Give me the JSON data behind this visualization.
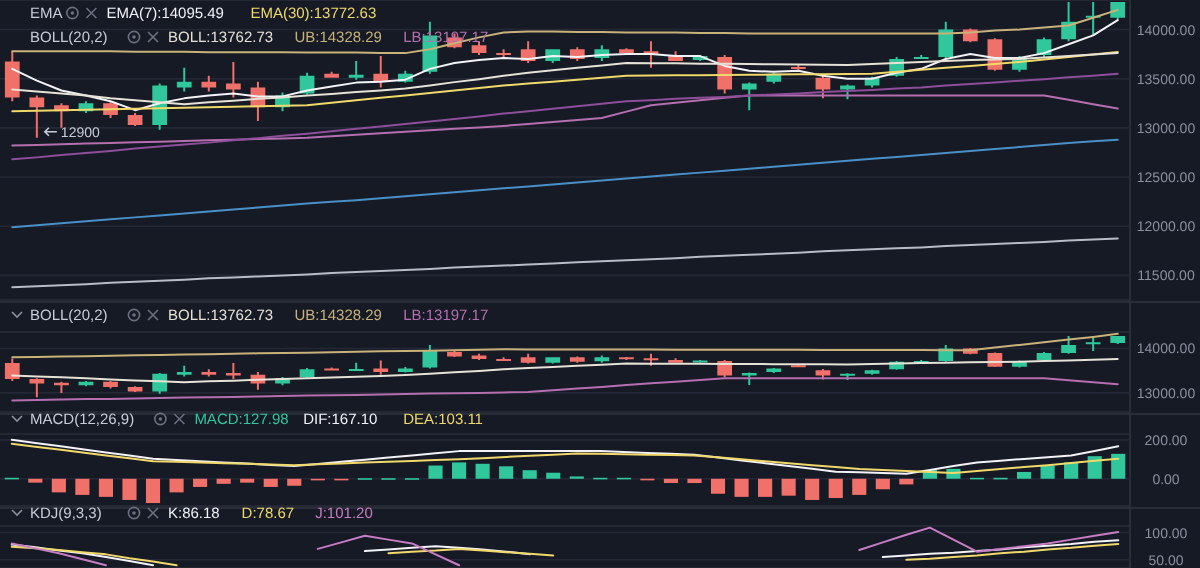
{
  "chart_data": [
    {
      "type": "candlestick",
      "categories": [
        null,
        null,
        null,
        null,
        null,
        null,
        null,
        null,
        null,
        null,
        null,
        null,
        null,
        null,
        null,
        null,
        null,
        null,
        null,
        null,
        null,
        null,
        null,
        null,
        null,
        null,
        null,
        null,
        null,
        null,
        null,
        null,
        null,
        null,
        null,
        null,
        null,
        null,
        null,
        null,
        null,
        null,
        null,
        null,
        null,
        null
      ],
      "ylim": [
        11250,
        14300
      ],
      "yticks": [
        {
          "value": 11500,
          "label": "11500.00"
        },
        {
          "value": 12000,
          "label": "12000.00"
        },
        {
          "value": 12500,
          "label": "12500.00"
        },
        {
          "value": 13000,
          "label": "13000.00"
        },
        {
          "value": 13500,
          "label": "13500.00"
        },
        {
          "value": 14000,
          "label": "14000.00"
        }
      ],
      "tick_labels": "y",
      "grid": "y",
      "ohlc": [
        [
          13675,
          13776,
          13270,
          13310
        ],
        [
          13310,
          13330,
          12900,
          13210
        ],
        [
          13230,
          13250,
          13000,
          13170
        ],
        [
          13170,
          13270,
          13150,
          13250
        ],
        [
          13250,
          13270,
          13100,
          13130
        ],
        [
          13130,
          13150,
          13020,
          13030
        ],
        [
          13030,
          13450,
          12980,
          13430
        ],
        [
          13410,
          13610,
          13370,
          13470
        ],
        [
          13470,
          13530,
          13370,
          13410
        ],
        [
          13450,
          13670,
          13310,
          13390
        ],
        [
          13410,
          13470,
          13070,
          13210
        ],
        [
          13210,
          13360,
          13170,
          13330
        ],
        [
          13350,
          13560,
          13340,
          13530
        ],
        [
          13550,
          13570,
          13510,
          13510
        ],
        [
          13510,
          13680,
          13490,
          13540
        ],
        [
          13550,
          13730,
          13410,
          13470
        ],
        [
          13470,
          13580,
          13460,
          13550
        ],
        [
          13570,
          14080,
          13550,
          13940
        ],
        [
          13920,
          13960,
          13810,
          13820
        ],
        [
          13840,
          13880,
          13740,
          13760
        ],
        [
          13760,
          13800,
          13720,
          13740
        ],
        [
          13800,
          13880,
          13660,
          13680
        ],
        [
          13680,
          13800,
          13660,
          13800
        ],
        [
          13800,
          13820,
          13680,
          13700
        ],
        [
          13710,
          13840,
          13680,
          13800
        ],
        [
          13800,
          13810,
          13740,
          13760
        ],
        [
          13780,
          13880,
          13610,
          13750
        ],
        [
          13740,
          13780,
          13680,
          13680
        ],
        [
          13690,
          13740,
          13680,
          13730
        ],
        [
          13720,
          13740,
          13350,
          13390
        ],
        [
          13390,
          13460,
          13180,
          13450
        ],
        [
          13470,
          13560,
          13450,
          13550
        ],
        [
          13620,
          13640,
          13590,
          13600
        ],
        [
          13510,
          13540,
          13300,
          13390
        ],
        [
          13390,
          13440,
          13290,
          13430
        ],
        [
          13430,
          13520,
          13410,
          13510
        ],
        [
          13530,
          13720,
          13520,
          13700
        ],
        [
          13710,
          13740,
          13700,
          13720
        ],
        [
          13720,
          14080,
          13700,
          14000
        ],
        [
          14000,
          14010,
          13870,
          13880
        ],
        [
          13900,
          13910,
          13580,
          13590
        ],
        [
          13590,
          13730,
          13570,
          13720
        ],
        [
          13740,
          13920,
          13720,
          13900
        ],
        [
          13900,
          14280,
          13880,
          14080
        ],
        [
          14120,
          14280,
          13940,
          14140
        ],
        [
          14120,
          14280,
          14100,
          14280
        ]
      ],
      "series": [
        {
          "type": "line",
          "name": "EMA(7):14095.49",
          "color": "#f2f2f7",
          "values": [
            13600,
            13480,
            13380,
            13330,
            13270,
            13180,
            13250,
            13300,
            13330,
            13350,
            13320,
            13320,
            13380,
            13420,
            13460,
            13470,
            13490,
            13600,
            13660,
            13690,
            13710,
            13700,
            13730,
            13720,
            13740,
            13750,
            13750,
            13730,
            13730,
            13630,
            13580,
            13570,
            13580,
            13530,
            13500,
            13500,
            13560,
            13600,
            13700,
            13750,
            13710,
            13710,
            13760,
            13850,
            13940,
            14095
          ]
        },
        {
          "type": "line",
          "name": "EMA(30):13772.63",
          "color": "#f0d96a",
          "values": [
            13170,
            13175,
            13180,
            13185,
            13190,
            13195,
            13200,
            13205,
            13210,
            13215,
            13220,
            13225,
            13230,
            13255,
            13280,
            13305,
            13330,
            13355,
            13380,
            13405,
            13430,
            13450,
            13470,
            13490,
            13510,
            13530,
            13532,
            13534,
            13536,
            13538,
            13540,
            13542,
            13544,
            13546,
            13548,
            13550,
            13570,
            13590,
            13610,
            13630,
            13650,
            13670,
            13695,
            13720,
            13745,
            13772
          ]
        },
        {
          "type": "line",
          "name": "BOLL:13762.73",
          "color": "#e6e2d6",
          "values": [
            13390,
            13370,
            13350,
            13330,
            13300,
            13280,
            13260,
            13240,
            13260,
            13275,
            13295,
            13310,
            13330,
            13345,
            13365,
            13380,
            13400,
            13430,
            13465,
            13495,
            13530,
            13560,
            13585,
            13610,
            13635,
            13660,
            13658,
            13656,
            13653,
            13651,
            13649,
            13647,
            13645,
            13642,
            13640,
            13650,
            13660,
            13670,
            13680,
            13690,
            13695,
            13700,
            13715,
            13730,
            13745,
            13762
          ]
        },
        {
          "type": "line",
          "name": "UB:14328.29",
          "color": "#c9b27a",
          "values": [
            13780,
            13780,
            13780,
            13780,
            13780,
            13775,
            13775,
            13775,
            13770,
            13770,
            13770,
            13770,
            13765,
            13765,
            13765,
            13760,
            13760,
            13800,
            13860,
            13920,
            13970,
            13980,
            13980,
            13975,
            13975,
            13970,
            13970,
            13970,
            13965,
            13965,
            13960,
            13960,
            13960,
            13960,
            13960,
            13960,
            13960,
            13960,
            13960,
            13970,
            13990,
            14000,
            14020,
            14040,
            14120,
            14200
          ]
        },
        {
          "type": "line",
          "name": "LB:13197.17",
          "color": "#b56fb0",
          "values": [
            12820,
            12827,
            12833,
            12840,
            12847,
            12853,
            12860,
            12867,
            12873,
            12880,
            12887,
            12893,
            12900,
            12915,
            12930,
            12945,
            12960,
            12975,
            12990,
            13005,
            13020,
            13040,
            13060,
            13080,
            13100,
            13165,
            13230,
            13255,
            13280,
            13305,
            13330,
            13330,
            13330,
            13330,
            13330,
            13330,
            13330,
            13330,
            13330,
            13330,
            13330,
            13330,
            13330,
            13285,
            13240,
            13197
          ]
        },
        {
          "type": "line",
          "color": "#8e4f9a",
          "values": [
            12680,
            12700,
            12725,
            12745,
            12765,
            12790,
            12810,
            12830,
            12850,
            12875,
            12895,
            12920,
            12940,
            12965,
            12990,
            13015,
            13040,
            13065,
            13090,
            13115,
            13145,
            13170,
            13195,
            13220,
            13245,
            13270,
            13280,
            13295,
            13305,
            13315,
            13330,
            13340,
            13350,
            13365,
            13375,
            13385,
            13400,
            13410,
            13430,
            13445,
            13460,
            13480,
            13495,
            13515,
            13530,
            13550
          ]
        },
        {
          "type": "line",
          "color": "#4a90c8",
          "values": [
            11990,
            12010,
            12030,
            12050,
            12070,
            12090,
            12110,
            12130,
            12150,
            12170,
            12190,
            12210,
            12230,
            12250,
            12265,
            12285,
            12305,
            12325,
            12345,
            12365,
            12385,
            12405,
            12425,
            12445,
            12465,
            12485,
            12505,
            12525,
            12545,
            12565,
            12585,
            12605,
            12625,
            12645,
            12665,
            12685,
            12705,
            12725,
            12745,
            12765,
            12785,
            12805,
            12825,
            12845,
            12865,
            12880
          ]
        },
        {
          "type": "line",
          "color": "#b8bcc8",
          "values": [
            11380,
            11390,
            11400,
            11410,
            11425,
            11435,
            11445,
            11455,
            11470,
            11480,
            11490,
            11500,
            11510,
            11525,
            11535,
            11545,
            11555,
            11565,
            11580,
            11590,
            11600,
            11610,
            11620,
            11635,
            11645,
            11655,
            11665,
            11675,
            11690,
            11700,
            11710,
            11720,
            11730,
            11745,
            11755,
            11765,
            11775,
            11785,
            11800,
            11810,
            11820,
            11830,
            11840,
            11855,
            11865,
            11875
          ]
        }
      ],
      "annotations": [
        "EMA",
        "BOLL(20,2)",
        {
          "text": "12900",
          "y": 12900
        }
      ]
    },
    {
      "type": "candlestick",
      "categories": [
        null,
        null,
        null,
        null,
        null,
        null,
        null,
        null,
        null,
        null,
        null,
        null,
        null,
        null,
        null,
        null,
        null,
        null,
        null,
        null,
        null,
        null,
        null,
        null,
        null,
        null,
        null,
        null,
        null,
        null,
        null,
        null,
        null,
        null,
        null,
        null,
        null,
        null,
        null,
        null,
        null,
        null,
        null,
        null,
        null,
        null
      ],
      "ylim": [
        12570,
        14370
      ],
      "yticks": [
        {
          "value": 13000,
          "label": "13000.00"
        },
        {
          "value": 14000,
          "label": "14000.00"
        }
      ],
      "tick_labels": "y",
      "grid": "y",
      "ohlc": [
        [
          13675,
          13776,
          13270,
          13310
        ],
        [
          13310,
          13330,
          12900,
          13210
        ],
        [
          13230,
          13250,
          13000,
          13170
        ],
        [
          13170,
          13270,
          13150,
          13250
        ],
        [
          13250,
          13270,
          13100,
          13130
        ],
        [
          13130,
          13150,
          13020,
          13030
        ],
        [
          13030,
          13450,
          12980,
          13430
        ],
        [
          13410,
          13610,
          13370,
          13470
        ],
        [
          13470,
          13530,
          13370,
          13410
        ],
        [
          13450,
          13670,
          13310,
          13390
        ],
        [
          13410,
          13470,
          13070,
          13210
        ],
        [
          13210,
          13360,
          13170,
          13330
        ],
        [
          13350,
          13560,
          13340,
          13530
        ],
        [
          13550,
          13570,
          13510,
          13510
        ],
        [
          13510,
          13680,
          13490,
          13540
        ],
        [
          13550,
          13730,
          13410,
          13470
        ],
        [
          13470,
          13580,
          13460,
          13550
        ],
        [
          13570,
          14080,
          13550,
          13940
        ],
        [
          13920,
          13960,
          13810,
          13820
        ],
        [
          13840,
          13880,
          13740,
          13760
        ],
        [
          13760,
          13800,
          13720,
          13740
        ],
        [
          13800,
          13880,
          13660,
          13680
        ],
        [
          13680,
          13800,
          13660,
          13800
        ],
        [
          13800,
          13820,
          13680,
          13700
        ],
        [
          13710,
          13840,
          13680,
          13800
        ],
        [
          13800,
          13810,
          13740,
          13760
        ],
        [
          13780,
          13880,
          13610,
          13750
        ],
        [
          13740,
          13780,
          13680,
          13680
        ],
        [
          13690,
          13740,
          13680,
          13730
        ],
        [
          13720,
          13740,
          13350,
          13390
        ],
        [
          13390,
          13460,
          13180,
          13450
        ],
        [
          13470,
          13560,
          13450,
          13550
        ],
        [
          13620,
          13640,
          13590,
          13600
        ],
        [
          13510,
          13540,
          13300,
          13390
        ],
        [
          13390,
          13440,
          13290,
          13430
        ],
        [
          13430,
          13520,
          13410,
          13510
        ],
        [
          13530,
          13720,
          13520,
          13700
        ],
        [
          13710,
          13740,
          13700,
          13720
        ],
        [
          13720,
          14080,
          13700,
          14000
        ],
        [
          14000,
          14010,
          13870,
          13880
        ],
        [
          13900,
          13910,
          13580,
          13590
        ],
        [
          13590,
          13730,
          13570,
          13720
        ],
        [
          13740,
          13920,
          13720,
          13900
        ],
        [
          13900,
          14280,
          13880,
          14080
        ],
        [
          14120,
          14280,
          13940,
          14140
        ],
        [
          14120,
          14280,
          14100,
          14280
        ]
      ],
      "series": [
        {
          "type": "line",
          "name": "BOLL:13762.73",
          "color": "#e6e2d6",
          "values": [
            13390,
            13370,
            13350,
            13330,
            13300,
            13280,
            13260,
            13240,
            13260,
            13275,
            13295,
            13310,
            13330,
            13345,
            13365,
            13380,
            13400,
            13430,
            13465,
            13495,
            13530,
            13560,
            13585,
            13610,
            13635,
            13660,
            13658,
            13656,
            13653,
            13651,
            13649,
            13647,
            13645,
            13642,
            13640,
            13650,
            13660,
            13670,
            13680,
            13690,
            13695,
            13700,
            13715,
            13730,
            13745,
            13762
          ]
        },
        {
          "type": "line",
          "name": "UB:14328.29",
          "color": "#c9b27a",
          "values": [
            13800,
            13810,
            13820,
            13825,
            13835,
            13845,
            13855,
            13865,
            13870,
            13880,
            13890,
            13900,
            13905,
            13915,
            13925,
            13935,
            13945,
            13950,
            13960,
            13970,
            13980,
            13979,
            13978,
            13977,
            13976,
            13975,
            13974,
            13973,
            13972,
            13971,
            13970,
            13969,
            13968,
            13967,
            13966,
            13965,
            13964,
            13963,
            13962,
            13960,
            14020,
            14080,
            14140,
            14200,
            14260,
            14328
          ]
        },
        {
          "type": "line",
          "name": "LB:13197.17",
          "color": "#b56fb0",
          "values": [
            12830,
            12840,
            12850,
            12860,
            12865,
            12875,
            12885,
            12895,
            12900,
            12910,
            12920,
            12930,
            12940,
            12945,
            12955,
            12965,
            12975,
            12985,
            12990,
            13000,
            13010,
            13020,
            13060,
            13100,
            13135,
            13175,
            13215,
            13250,
            13290,
            13330,
            13330,
            13330,
            13330,
            13330,
            13330,
            13330,
            13330,
            13330,
            13330,
            13330,
            13330,
            13330,
            13330,
            13285,
            13240,
            13197
          ]
        }
      ],
      "annotations": [
        "BOLL(20,2)"
      ]
    },
    {
      "type": "bar",
      "categories": [
        null,
        null,
        null,
        null,
        null,
        null,
        null,
        null,
        null,
        null,
        null,
        null,
        null,
        null,
        null,
        null,
        null,
        null,
        null,
        null,
        null,
        null,
        null,
        null,
        null,
        null,
        null,
        null,
        null,
        null,
        null,
        null,
        null,
        null,
        null,
        null,
        null,
        null,
        null,
        null,
        null,
        null,
        null,
        null,
        null,
        null,
        null,
        null
      ],
      "ylim": [
        -140,
        230
      ],
      "yticks": [
        {
          "value": 0,
          "label": "0.00"
        },
        {
          "value": 200,
          "label": "200.00"
        }
      ],
      "tick_labels": "y",
      "grid": "y",
      "series": [
        {
          "type": "bar",
          "name": "MACD:127.98",
          "color": "#2fc79b",
          "values": [
            5,
            -20,
            -70,
            -83,
            -93,
            -109,
            -125,
            -70,
            -42,
            -26,
            -20,
            -42,
            -36,
            -7,
            -3,
            3,
            3,
            3,
            68,
            84,
            77,
            64,
            44,
            31,
            12,
            5,
            5,
            -5,
            -22,
            -22,
            -77,
            -93,
            -93,
            -87,
            -109,
            -99,
            -83,
            -54,
            -29,
            45,
            51,
            5,
            5,
            35,
            68,
            84,
            116,
            128
          ],
          "colors": [
            "#2fc79b",
            "#f0706a",
            "#f0706a",
            "#f0706a",
            "#f0706a",
            "#f0706a",
            "#f0706a",
            "#f0706a",
            "#f0706a",
            "#f0706a",
            "#f0706a",
            "#f0706a",
            "#f0706a",
            "#f0706a",
            "#f0706a",
            "#2fc79b",
            "#2fc79b",
            "#2fc79b",
            "#2fc79b",
            "#2fc79b",
            "#2fc79b",
            "#2fc79b",
            "#2fc79b",
            "#2fc79b",
            "#2fc79b",
            "#2fc79b",
            "#2fc79b",
            "#f0706a",
            "#f0706a",
            "#f0706a",
            "#f0706a",
            "#f0706a",
            "#f0706a",
            "#f0706a",
            "#f0706a",
            "#f0706a",
            "#f0706a",
            "#f0706a",
            "#f0706a",
            "#2fc79b",
            "#2fc79b",
            "#2fc79b",
            "#2fc79b",
            "#2fc79b",
            "#2fc79b",
            "#2fc79b",
            "#2fc79b",
            "#2fc79b"
          ]
        },
        {
          "type": "line",
          "name": "DIF:167.10",
          "color": "#f2f2f7",
          "values": [
            200,
            184,
            168,
            152,
            135,
            119,
            103,
            97,
            90,
            84,
            78,
            71,
            65,
            76,
            87,
            98,
            109,
            120,
            131,
            142,
            142,
            142,
            142,
            142,
            142,
            142,
            137,
            133,
            128,
            123,
            109,
            94,
            80,
            65,
            51,
            36,
            33,
            29,
            26,
            45,
            65,
            84,
            93,
            102,
            111,
            120,
            143,
            167
          ]
        },
        {
          "type": "line",
          "name": "DEA:103.11",
          "color": "#f0d96a",
          "values": [
            180,
            165,
            150,
            135,
            120,
            105,
            90,
            87,
            83,
            80,
            77,
            73,
            70,
            74,
            79,
            83,
            87,
            91,
            96,
            100,
            106,
            112,
            118,
            124,
            130,
            128,
            126,
            124,
            122,
            120,
            110,
            100,
            90,
            80,
            70,
            60,
            50,
            45,
            40,
            35,
            30,
            40,
            50,
            60,
            70,
            81,
            92,
            103
          ]
        }
      ],
      "annotations": [
        "MACD(12,26,9)"
      ]
    },
    {
      "type": "line",
      "categories": [
        null,
        null,
        null,
        null,
        null,
        null,
        null,
        null,
        null,
        null,
        null,
        null,
        null,
        null,
        null,
        null,
        null,
        null,
        null,
        null,
        null,
        null,
        null,
        null,
        null,
        null,
        null,
        null,
        null,
        null,
        null,
        null,
        null,
        null,
        null,
        null,
        null,
        null,
        null,
        null,
        null,
        null,
        null,
        null,
        null,
        null,
        null,
        null
      ],
      "ylim": [
        35,
        112
      ],
      "yticks": [
        {
          "value": 50,
          "label": "50.00"
        },
        {
          "value": 100,
          "label": "100.00"
        }
      ],
      "tick_labels": "y",
      "grid": "y",
      "series": [
        {
          "type": "line",
          "name": "K:86.18",
          "color": "#f2f2f7",
          "values": [
            78,
            73,
            67,
            62,
            55,
            48,
            40,
            null,
            null,
            null,
            null,
            null,
            null,
            null,
            null,
            66,
            69,
            72,
            75,
            72,
            69,
            65,
            60,
            null,
            null,
            null,
            null,
            null,
            null,
            null,
            null,
            null,
            null,
            null,
            null,
            null,
            null,
            55,
            58,
            61,
            63,
            66,
            69,
            73,
            76,
            79,
            83,
            86
          ]
        },
        {
          "type": "line",
          "name": "D:78.67",
          "color": "#f0d96a",
          "values": [
            74,
            71,
            68,
            64,
            60,
            53,
            47,
            40,
            null,
            null,
            null,
            null,
            null,
            null,
            null,
            null,
            62,
            65,
            67,
            70,
            67,
            64,
            61,
            58,
            null,
            null,
            null,
            null,
            null,
            null,
            null,
            null,
            null,
            null,
            null,
            null,
            null,
            null,
            50,
            52,
            55,
            58,
            62,
            65,
            69,
            72,
            76,
            79
          ]
        },
        {
          "type": "line",
          "name": "J:101.20",
          "color": "#c77dc4",
          "values": [
            80,
            71,
            62,
            51,
            40,
            null,
            null,
            null,
            null,
            null,
            null,
            null,
            null,
            70,
            82,
            94,
            87,
            80,
            60,
            40,
            null,
            null,
            null,
            null,
            null,
            null,
            null,
            null,
            null,
            null,
            null,
            null,
            null,
            null,
            null,
            null,
            68,
            82,
            96,
            109,
            87,
            65,
            70,
            75,
            80,
            87,
            94,
            101
          ]
        }
      ],
      "annotations": [
        "KDJ(9,3,3)"
      ]
    }
  ]
}
